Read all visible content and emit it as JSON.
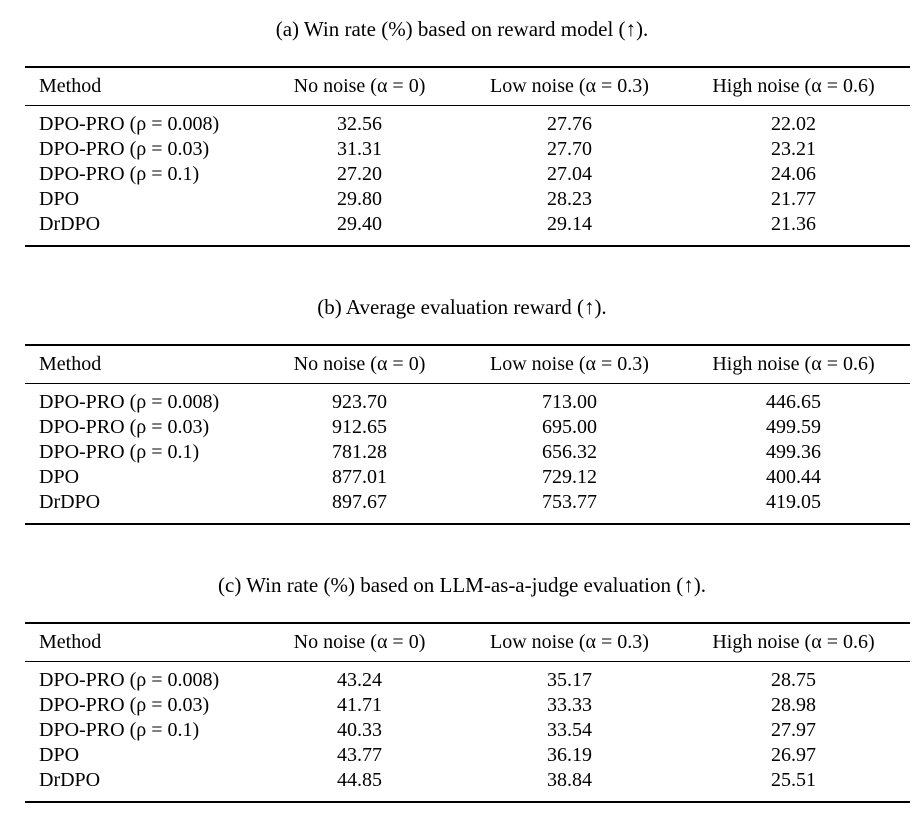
{
  "page": {
    "background": "#ffffff",
    "text_color": "#000000"
  },
  "tables": [
    {
      "id": "a",
      "caption": "(a) Win rate (%) based on reward model (↑).",
      "columns": [
        "Method",
        "No noise (α = 0)",
        "Low noise (α = 0.3)",
        "High noise (α = 0.6)"
      ],
      "rows": [
        {
          "method": "DPO-PRO (ρ = 0.008)",
          "values": [
            "32.56",
            "27.76",
            "22.02"
          ]
        },
        {
          "method": "DPO-PRO (ρ = 0.03)",
          "values": [
            "31.31",
            "27.70",
            "23.21"
          ]
        },
        {
          "method": "DPO-PRO (ρ = 0.1)",
          "values": [
            "27.20",
            "27.04",
            "24.06"
          ]
        },
        {
          "method": "DPO",
          "values": [
            "29.80",
            "28.23",
            "21.77"
          ]
        },
        {
          "method": "DrDPO",
          "values": [
            "29.40",
            "29.14",
            "21.36"
          ]
        }
      ]
    },
    {
      "id": "b",
      "caption": "(b) Average evaluation reward (↑).",
      "columns": [
        "Method",
        "No noise (α = 0)",
        "Low noise (α = 0.3)",
        "High noise (α = 0.6)"
      ],
      "rows": [
        {
          "method": "DPO-PRO (ρ = 0.008)",
          "values": [
            "923.70",
            "713.00",
            "446.65"
          ]
        },
        {
          "method": "DPO-PRO (ρ = 0.03)",
          "values": [
            "912.65",
            "695.00",
            "499.59"
          ]
        },
        {
          "method": "DPO-PRO (ρ = 0.1)",
          "values": [
            "781.28",
            "656.32",
            "499.36"
          ]
        },
        {
          "method": "DPO",
          "values": [
            "877.01",
            "729.12",
            "400.44"
          ]
        },
        {
          "method": "DrDPO",
          "values": [
            "897.67",
            "753.77",
            "419.05"
          ]
        }
      ]
    },
    {
      "id": "c",
      "caption": "(c) Win rate (%) based on LLM-as-a-judge evaluation (↑).",
      "columns": [
        "Method",
        "No noise (α = 0)",
        "Low noise (α = 0.3)",
        "High noise (α = 0.6)"
      ],
      "rows": [
        {
          "method": "DPO-PRO (ρ = 0.008)",
          "values": [
            "43.24",
            "35.17",
            "28.75"
          ]
        },
        {
          "method": "DPO-PRO (ρ = 0.03)",
          "values": [
            "41.71",
            "33.33",
            "28.98"
          ]
        },
        {
          "method": "DPO-PRO (ρ = 0.1)",
          "values": [
            "40.33",
            "33.54",
            "27.97"
          ]
        },
        {
          "method": "DPO",
          "values": [
            "43.77",
            "36.19",
            "26.97"
          ]
        },
        {
          "method": "DrDPO",
          "values": [
            "44.85",
            "38.84",
            "25.51"
          ]
        }
      ]
    }
  ]
}
